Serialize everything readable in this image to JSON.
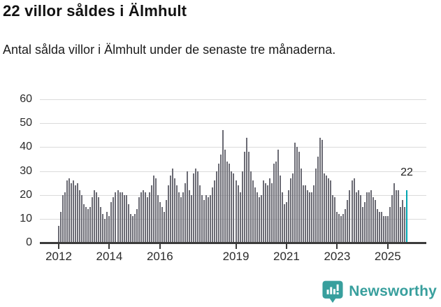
{
  "header": {
    "title": "22 villor såldes i Älmhult",
    "subtitle": "Antal sålda villor i Älmhult under de senaste tre månaderna."
  },
  "chart_data": {
    "type": "bar",
    "title": "22 villor såldes i Älmhult",
    "ylabel": "",
    "xlabel": "",
    "unit": "månad",
    "x_start_year": 2012,
    "ylim": [
      0,
      60
    ],
    "y_ticks": [
      0,
      10,
      20,
      30,
      40,
      50,
      60
    ],
    "x_tick_years": [
      "2012",
      "2014",
      "2016",
      "2019",
      "2021",
      "2023",
      "2025"
    ],
    "grid": true,
    "values": [
      7,
      13,
      20,
      21,
      26,
      27,
      25,
      26,
      24,
      25,
      22,
      20,
      16,
      15,
      14,
      15,
      19,
      22,
      21,
      19,
      15,
      12,
      10,
      13,
      11,
      17,
      19,
      21,
      22,
      21,
      21,
      20,
      20,
      16,
      12,
      11,
      12,
      14,
      19,
      21,
      22,
      21,
      19,
      21,
      24,
      28,
      27,
      20,
      17,
      15,
      13,
      18,
      24,
      28,
      31,
      27,
      24,
      21,
      19,
      21,
      25,
      30,
      22,
      20,
      29,
      31,
      30,
      24,
      20,
      18,
      20,
      19,
      20,
      23,
      26,
      30,
      33,
      37,
      47,
      39,
      34,
      33,
      30,
      29,
      26,
      24,
      21,
      30,
      38,
      44,
      38,
      30,
      26,
      23,
      21,
      19,
      20,
      26,
      25,
      24,
      27,
      25,
      33,
      34,
      39,
      28,
      21,
      16,
      17,
      22,
      27,
      29,
      42,
      40,
      38,
      31,
      24,
      24,
      22,
      21,
      21,
      24,
      31,
      36,
      44,
      43,
      29,
      28,
      27,
      26,
      20,
      19,
      13,
      12,
      11,
      12,
      14,
      18,
      22,
      26,
      27,
      21,
      22,
      20,
      15,
      17,
      21,
      21,
      22,
      19,
      18,
      14,
      13,
      13,
      11,
      11,
      11,
      15,
      20,
      25,
      22,
      22,
      15,
      18,
      15,
      22
    ],
    "highlight": {
      "index_from_end": 1,
      "value": 22,
      "label": "22"
    },
    "colors": {
      "bar": "#6b6b74",
      "highlight": "#00a6b1"
    }
  },
  "footer": {
    "brand": "Newsworthy",
    "brand_color": "#389f9d"
  }
}
